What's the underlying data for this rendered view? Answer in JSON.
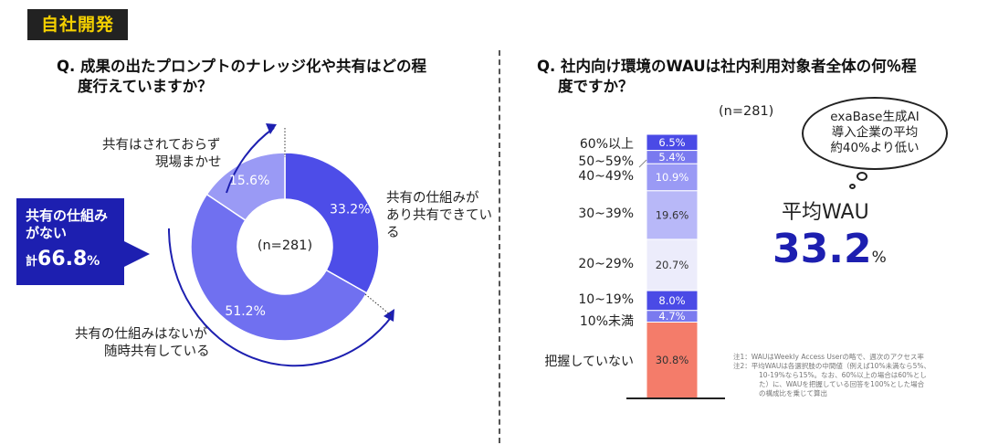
{
  "tag": "自社開発",
  "left": {
    "question_line1": "Q. 成果の出たプロンプトのナレッジ化や共有はどの程",
    "question_line2": "度行えていますか？",
    "center_label": "(n=281)",
    "callout_title_1": "共有の仕組み",
    "callout_title_2": "がない",
    "callout_prefix": "計",
    "callout_value": "66.8",
    "callout_unit": "%",
    "label_top_1": "共有はされておらず",
    "label_top_2": "現場まかせ",
    "label_right_1": "共有の仕組みが",
    "label_right_2": "あり共有できてい",
    "label_right_3": "る",
    "label_bottom_1": "共有の仕組みはないが",
    "label_bottom_2": "随時共有している"
  },
  "right": {
    "question_line1": "Q. 社内向け環境のWAUは社内利用対象者全体の何％程",
    "question_line2": "度ですか？",
    "n_label": "(n=281)",
    "bubble_1": "exaBase生成AI",
    "bubble_2": "導入企業の平均",
    "bubble_3": "約40%より低い",
    "avg_title": "平均WAU",
    "avg_value": "33.2",
    "avg_unit": "%",
    "note_1": "注1：WAUはWeekly Access Userの略で、週次のアクセス率",
    "note_2": "注2：平均WAUは各選択肢の中間値（例えば10%未満なら5%、",
    "note_3": "10-19%なら15%。なお、60%以上の場合は60%とし",
    "note_4": "た）に、WAUを把握している回答を100%とした場合",
    "note_5": "の構成比を乗じて算出"
  },
  "chart_data": [
    {
      "type": "pie",
      "values": [
        33.2,
        51.2,
        15.6
      ],
      "labels": [
        "33.2%",
        "51.2%",
        "15.6%"
      ],
      "categories": [
        "共有の仕組みがあり共有できている",
        "共有の仕組みはないが随時共有している",
        "共有はされておらず現場まかせ"
      ],
      "colors": [
        "#4d4de8",
        "#7070f0",
        "#9a9af5"
      ],
      "center_text": "(n=281)"
    },
    {
      "type": "bar",
      "stacked": true,
      "categories": [
        "60%以上",
        "50~59%",
        "40~49%",
        "30~39%",
        "20~29%",
        "10~19%",
        "10%未満",
        "把握していない"
      ],
      "values": [
        6.5,
        5.4,
        10.9,
        19.6,
        20.7,
        8.0,
        4.7,
        30.8
      ],
      "labels": [
        "6.5%",
        "5.4%",
        "10.9%",
        "19.6%",
        "20.7%",
        "8.0%",
        "4.7%",
        "30.8%"
      ],
      "colors": [
        "#4a4ae6",
        "#7a7aef",
        "#9a9af5",
        "#b8b8f8",
        "#ececfb",
        "#4a4ae6",
        "#7a7aef",
        "#f47c6a"
      ]
    }
  ]
}
